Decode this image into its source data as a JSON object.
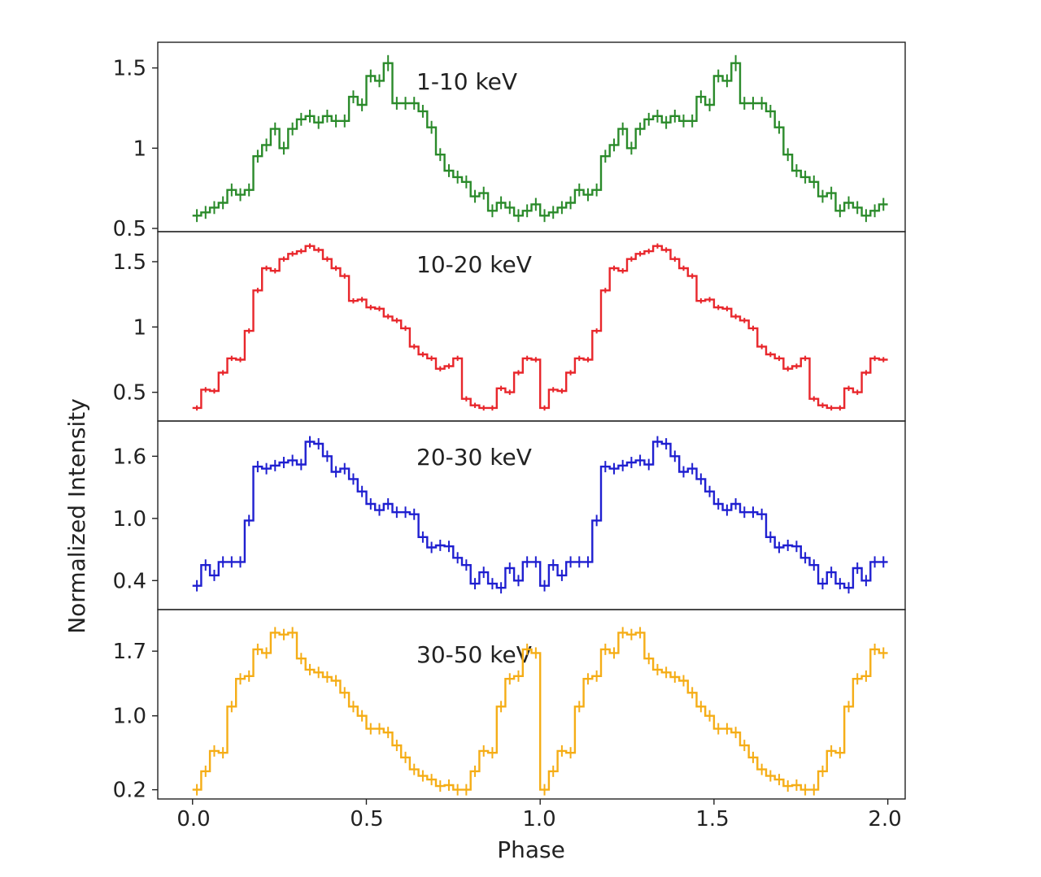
{
  "figure": {
    "ylabel": "Normalized Intensity",
    "xlabel": "Phase",
    "x_ticks": [
      "0.0",
      "0.5",
      "1.0",
      "1.5",
      "2.0"
    ]
  },
  "chart_data": [
    {
      "type": "line",
      "title": "1-10 keV",
      "color": "#2a8a2a",
      "xlabel": "Phase",
      "ylabel": "Normalized Intensity",
      "xlim": [
        -0.1,
        2.05
      ],
      "ylim": [
        0.48,
        1.66
      ],
      "y_ticks": [
        0.5,
        1.0,
        1.5
      ],
      "y_tick_labels": [
        "0.5",
        "1",
        "1.5"
      ],
      "step_width": 0.025,
      "x": [
        0.0,
        0.025,
        0.05,
        0.075,
        0.1,
        0.125,
        0.15,
        0.175,
        0.2,
        0.225,
        0.25,
        0.275,
        0.3,
        0.325,
        0.35,
        0.375,
        0.4,
        0.425,
        0.45,
        0.475,
        0.5,
        0.525,
        0.55,
        0.575,
        0.6,
        0.625,
        0.65,
        0.675,
        0.7,
        0.725,
        0.75,
        0.775,
        0.8,
        0.825,
        0.85,
        0.875,
        0.9,
        0.925,
        0.95,
        0.975
      ],
      "y": [
        0.58,
        0.6,
        0.63,
        0.66,
        0.74,
        0.71,
        0.74,
        0.95,
        1.02,
        1.12,
        1.0,
        1.12,
        1.18,
        1.2,
        1.16,
        1.2,
        1.17,
        1.17,
        1.32,
        1.27,
        1.45,
        1.42,
        1.53,
        1.28,
        1.28,
        1.28,
        1.23,
        1.13,
        0.96,
        0.86,
        0.82,
        0.79,
        0.7,
        0.72,
        0.61,
        0.66,
        0.63,
        0.58,
        0.61,
        0.65
      ],
      "err": [
        0.04,
        0.04,
        0.04,
        0.04,
        0.04,
        0.04,
        0.04,
        0.04,
        0.04,
        0.04,
        0.04,
        0.04,
        0.04,
        0.04,
        0.04,
        0.04,
        0.04,
        0.04,
        0.04,
        0.04,
        0.04,
        0.04,
        0.05,
        0.04,
        0.04,
        0.04,
        0.04,
        0.04,
        0.04,
        0.04,
        0.04,
        0.04,
        0.04,
        0.04,
        0.04,
        0.04,
        0.04,
        0.04,
        0.04,
        0.04
      ]
    },
    {
      "type": "line",
      "title": "10-20 keV",
      "color": "#e8262b",
      "xlabel": "Phase",
      "ylabel": "Normalized Intensity",
      "xlim": [
        -0.1,
        2.05
      ],
      "ylim": [
        0.28,
        1.73
      ],
      "y_ticks": [
        0.5,
        1.0,
        1.5
      ],
      "y_tick_labels": [
        "0.5",
        "1",
        "1.5"
      ],
      "step_width": 0.025,
      "x": [
        0.0,
        0.025,
        0.05,
        0.075,
        0.1,
        0.125,
        0.15,
        0.175,
        0.2,
        0.225,
        0.25,
        0.275,
        0.3,
        0.325,
        0.35,
        0.375,
        0.4,
        0.425,
        0.45,
        0.475,
        0.5,
        0.525,
        0.55,
        0.575,
        0.6,
        0.625,
        0.65,
        0.675,
        0.7,
        0.725,
        0.75,
        0.775,
        0.8,
        0.825,
        0.85,
        0.875,
        0.9,
        0.925,
        0.95,
        0.975
      ],
      "y": [
        0.38,
        0.52,
        0.51,
        0.65,
        0.76,
        0.75,
        0.97,
        1.28,
        1.45,
        1.43,
        1.52,
        1.56,
        1.58,
        1.62,
        1.59,
        1.52,
        1.45,
        1.39,
        1.2,
        1.21,
        1.15,
        1.14,
        1.08,
        1.05,
        0.99,
        0.85,
        0.79,
        0.76,
        0.68,
        0.7,
        0.76,
        0.45,
        0.4,
        0.38,
        0.38,
        0.53,
        0.5,
        0.65,
        0.76,
        0.75
      ],
      "err": [
        0.02,
        0.02,
        0.02,
        0.02,
        0.02,
        0.02,
        0.02,
        0.02,
        0.02,
        0.02,
        0.02,
        0.02,
        0.02,
        0.02,
        0.02,
        0.02,
        0.02,
        0.02,
        0.02,
        0.02,
        0.02,
        0.02,
        0.02,
        0.02,
        0.02,
        0.02,
        0.02,
        0.02,
        0.02,
        0.02,
        0.02,
        0.02,
        0.02,
        0.02,
        0.02,
        0.02,
        0.02,
        0.02,
        0.02,
        0.02
      ]
    },
    {
      "type": "line",
      "title": "20-30 keV",
      "color": "#1f1fd0",
      "xlabel": "Phase",
      "ylabel": "Normalized Intensity",
      "xlim": [
        -0.1,
        2.05
      ],
      "ylim": [
        0.12,
        1.94
      ],
      "y_ticks": [
        0.4,
        1.0,
        1.6
      ],
      "y_tick_labels": [
        "0.4",
        "1.0",
        "1.6"
      ],
      "step_width": 0.025,
      "x": [
        0.0,
        0.025,
        0.05,
        0.075,
        0.1,
        0.125,
        0.15,
        0.175,
        0.2,
        0.225,
        0.25,
        0.275,
        0.3,
        0.325,
        0.35,
        0.375,
        0.4,
        0.425,
        0.45,
        0.475,
        0.5,
        0.525,
        0.55,
        0.575,
        0.6,
        0.625,
        0.65,
        0.675,
        0.7,
        0.725,
        0.75,
        0.775,
        0.8,
        0.825,
        0.85,
        0.875,
        0.9,
        0.925,
        0.95,
        0.975
      ],
      "y": [
        0.35,
        0.55,
        0.45,
        0.58,
        0.58,
        0.58,
        0.98,
        1.5,
        1.48,
        1.51,
        1.54,
        1.56,
        1.52,
        1.74,
        1.72,
        1.6,
        1.45,
        1.48,
        1.38,
        1.26,
        1.14,
        1.08,
        1.14,
        1.06,
        1.06,
        1.04,
        0.82,
        0.72,
        0.74,
        0.73,
        0.62,
        0.55,
        0.37,
        0.48,
        0.37,
        0.33,
        0.52,
        0.4,
        0.58,
        0.58
      ]
    },
    {
      "type": "line",
      "title": "30-50 keV",
      "color": "#f5ad16",
      "xlabel": "Phase",
      "ylabel": "Normalized Intensity",
      "xlim": [
        -0.1,
        2.05
      ],
      "ylim": [
        0.1,
        2.15
      ],
      "y_ticks": [
        0.2,
        1.0,
        1.7
      ],
      "y_tick_labels": [
        "0.2",
        "1.0",
        "1.7"
      ],
      "step_width": 0.025,
      "x": [
        0.0,
        0.025,
        0.05,
        0.075,
        0.1,
        0.125,
        0.15,
        0.175,
        0.2,
        0.225,
        0.25,
        0.275,
        0.3,
        0.325,
        0.35,
        0.375,
        0.4,
        0.425,
        0.45,
        0.475,
        0.5,
        0.525,
        0.55,
        0.575,
        0.6,
        0.625,
        0.65,
        0.675,
        0.7,
        0.725,
        0.75,
        0.775,
        0.8,
        0.825,
        0.85,
        0.875,
        0.9,
        0.925,
        0.95,
        0.975
      ],
      "y": [
        0.2,
        0.4,
        0.62,
        0.6,
        1.1,
        1.4,
        1.43,
        1.72,
        1.68,
        1.9,
        1.88,
        1.9,
        1.62,
        1.5,
        1.47,
        1.42,
        1.38,
        1.25,
        1.1,
        1.0,
        0.86,
        0.86,
        0.82,
        0.68,
        0.55,
        0.42,
        0.35,
        0.31,
        0.24,
        0.25,
        0.2,
        0.2,
        0.4,
        0.62,
        0.6,
        1.1,
        1.4,
        1.43,
        1.72,
        1.68
      ]
    }
  ]
}
